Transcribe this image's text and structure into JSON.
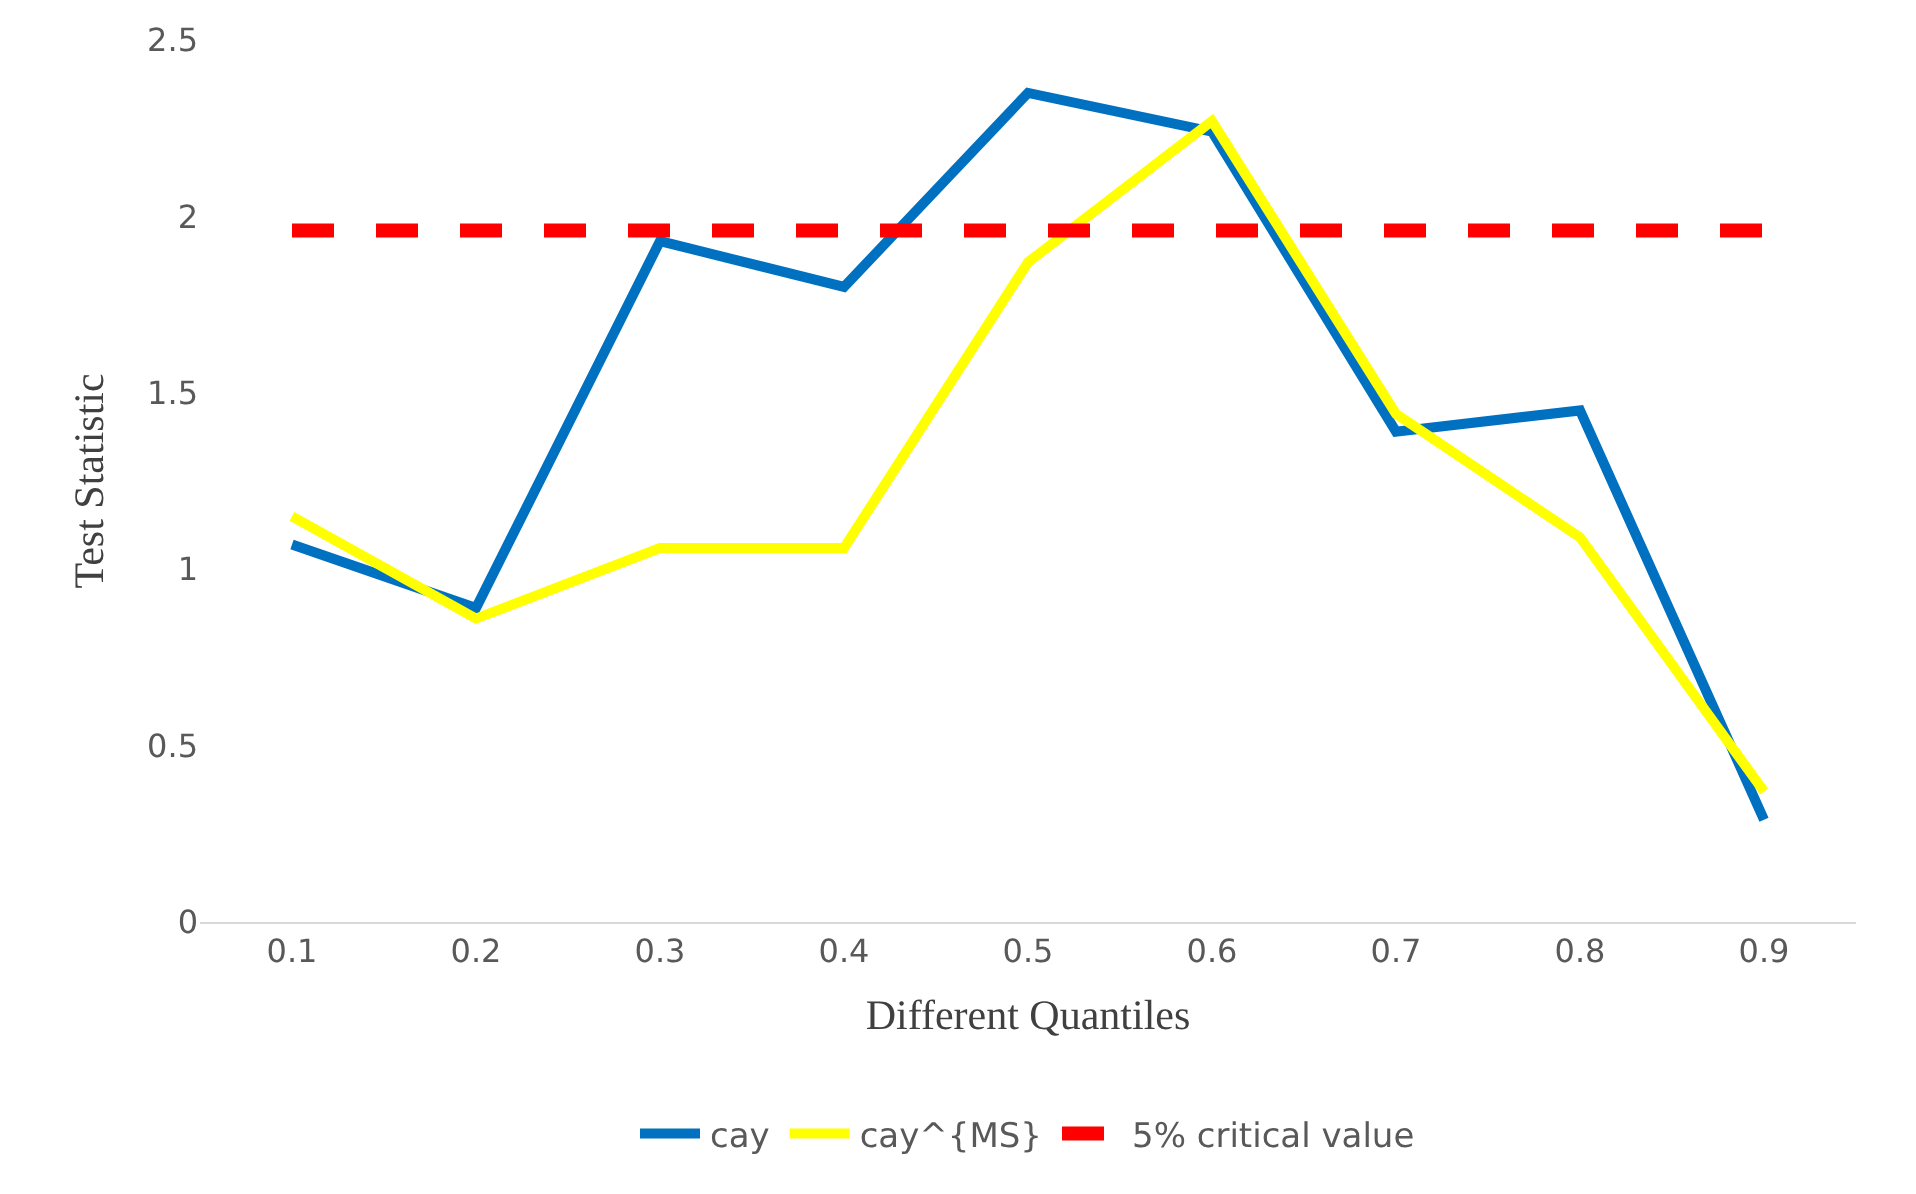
{
  "chart_data": {
    "type": "line",
    "xlabel": "Different Quantiles",
    "ylabel": "Test Statistic",
    "categories": [
      "0.1",
      "0.2",
      "0.3",
      "0.4",
      "0.5",
      "0.6",
      "0.7",
      "0.8",
      "0.9"
    ],
    "series": [
      {
        "name": "cay",
        "color": "#0070c0",
        "values": [
          1.07,
          0.89,
          1.93,
          1.8,
          2.35,
          2.24,
          1.39,
          1.45,
          0.29
        ]
      },
      {
        "name": "cay^{MS}",
        "color": "#ffff00",
        "values": [
          1.15,
          0.86,
          1.06,
          1.06,
          1.87,
          2.27,
          1.44,
          1.09,
          0.37
        ]
      },
      {
        "name": "5% critical value",
        "color": "#ff0000",
        "line_style": "dashed",
        "values": [
          1.96,
          1.96,
          1.96,
          1.96,
          1.96,
          1.96,
          1.96,
          1.96,
          1.96
        ]
      }
    ],
    "ylim": [
      0,
      2.5
    ],
    "yticks": [
      0,
      0.5,
      1,
      1.5,
      2,
      2.5
    ],
    "legend": "bottom",
    "marker": "none",
    "line_style": "solid"
  }
}
